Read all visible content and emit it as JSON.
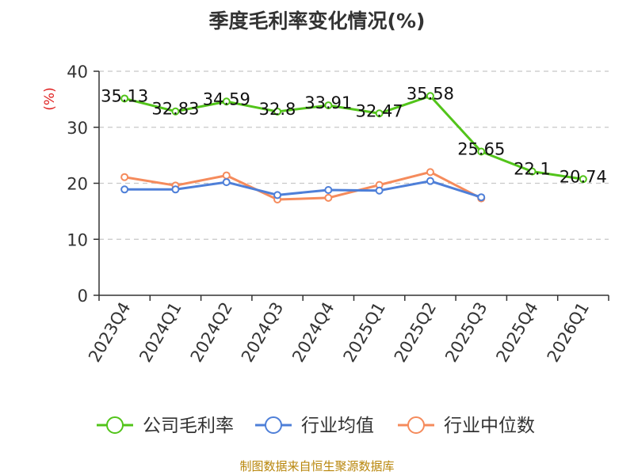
{
  "chart_data": {
    "type": "line",
    "title": "季度毛利率变化情况(%)",
    "ylabel": "(%)",
    "ylim": [
      0,
      40
    ],
    "yticks": [
      0,
      10,
      20,
      30,
      40
    ],
    "grid": true,
    "legend_position": "bottom",
    "categories": [
      "2023Q4",
      "2024Q1",
      "2024Q2",
      "2024Q3",
      "2024Q4",
      "2025Q1",
      "2025Q2",
      "2025Q3",
      "2025Q4",
      "2026Q1"
    ],
    "series": [
      {
        "name": "公司毛利率",
        "color": "#52c41a",
        "values": [
          35.13,
          32.83,
          34.59,
          32.8,
          33.91,
          32.47,
          35.58,
          25.65,
          22.1,
          20.74
        ],
        "labels": [
          "35.13",
          "32.83",
          "34.59",
          "32.8",
          "33.91",
          "32.47",
          "35.58",
          "25.65",
          "22.1",
          "20.74"
        ]
      },
      {
        "name": "行业均值",
        "color": "#4e7fd8",
        "values": [
          18.9,
          18.9,
          20.2,
          17.9,
          18.8,
          18.7,
          20.4,
          17.5,
          null,
          null
        ]
      },
      {
        "name": "行业中位数",
        "color": "#f58b5c",
        "values": [
          21.1,
          19.6,
          21.4,
          17.1,
          17.4,
          19.7,
          22.0,
          17.3,
          null,
          null
        ]
      }
    ],
    "source": "制图数据来自恒生聚源数据库"
  }
}
